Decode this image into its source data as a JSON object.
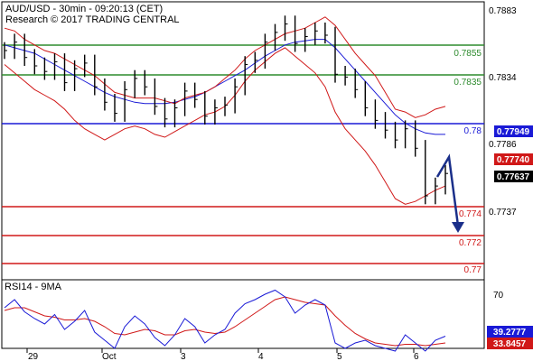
{
  "header": {
    "line1": "AUD/USD - 30min - 09:20:13 (CET)",
    "line2": "Research © 2017 TRADING CENTRAL"
  },
  "colors": {
    "green": "#2e8b2e",
    "blue": "#1a1ad6",
    "red": "#d01818",
    "black": "#000000",
    "price_tag_bg": "#000000",
    "rsi_tag_bg": "#1a1ad6"
  },
  "chart_data": [
    {
      "type": "line",
      "series": [
        {
          "values": [
            0.7852,
            0.7858,
            0.7847,
            0.7841,
            0.7837,
            0.7844,
            0.7829,
            0.7839,
            0.7843,
            0.7826,
            0.7815,
            0.7807,
            0.7824,
            0.7832,
            0.7826,
            0.7812,
            0.7803,
            0.7811,
            0.7823,
            0.7817,
            0.7805,
            0.7811,
            0.7813,
            0.7826,
            0.7842,
            0.7845,
            0.7858,
            0.7865,
            0.7871,
            0.7857,
            0.7862,
            0.7866,
            0.7863,
            0.7835,
            0.7833,
            0.7824,
            0.7811,
            0.7802,
            0.7795,
            0.7788,
            0.7796,
            0.7782,
            0.7748,
            0.7755,
            0.7764
          ]
        },
        {
          "values": [
            0.7868,
            0.7866,
            0.786,
            0.7856,
            0.7852,
            0.785,
            0.7846,
            0.7842,
            0.7838,
            0.7834,
            0.7828,
            0.7822,
            0.782,
            0.7818,
            0.7818,
            0.7818,
            0.7816,
            0.7814,
            0.7818,
            0.782,
            0.7822,
            0.7826,
            0.7832,
            0.7838,
            0.7846,
            0.7852,
            0.7856,
            0.786,
            0.7864,
            0.7866,
            0.7868,
            0.7872,
            0.7876,
            0.787,
            0.786,
            0.785,
            0.7842,
            0.7834,
            0.7822,
            0.781,
            0.7808,
            0.7804,
            0.7806,
            0.781,
            0.7812
          ]
        },
        {
          "values": [
            0.7842,
            0.7836,
            0.783,
            0.7824,
            0.782,
            0.7816,
            0.781,
            0.7802,
            0.7796,
            0.7792,
            0.7788,
            0.7792,
            0.7796,
            0.7798,
            0.7796,
            0.7792,
            0.779,
            0.7794,
            0.7798,
            0.7802,
            0.7806,
            0.7808,
            0.7812,
            0.782,
            0.783,
            0.7838,
            0.7844,
            0.785,
            0.7854,
            0.7848,
            0.7842,
            0.7836,
            0.7826,
            0.7808,
            0.7796,
            0.7788,
            0.778,
            0.777,
            0.7758,
            0.7746,
            0.7742,
            0.7744,
            0.7748,
            0.7752,
            0.7755
          ]
        },
        {
          "values": [
            0.7856,
            0.7854,
            0.7852,
            0.785,
            0.7846,
            0.7842,
            0.7838,
            0.7834,
            0.783,
            0.7826,
            0.7822,
            0.7819,
            0.7817,
            0.7815,
            0.7814,
            0.7814,
            0.7814,
            0.7815,
            0.7817,
            0.7819,
            0.7822,
            0.7826,
            0.783,
            0.7834,
            0.7838,
            0.7843,
            0.7848,
            0.7852,
            0.7856,
            0.7858,
            0.7859,
            0.786,
            0.786,
            0.7854,
            0.7846,
            0.7838,
            0.783,
            0.7822,
            0.7814,
            0.7806,
            0.78,
            0.7796,
            0.7793,
            0.7792,
            0.7792
          ]
        }
      ],
      "support_resistance": [
        "0.7855",
        "0.7835",
        "0.78",
        "0.774",
        "0.772",
        "0.77"
      ],
      "price_tags": [
        "0.77949",
        "0.77740",
        "0.77637"
      ],
      "yticks": [
        "0.7883",
        "0.7834",
        "0.7786",
        "0.7737"
      ],
      "xticks": [
        "29",
        "Oct",
        "3",
        "4",
        "5",
        "6"
      ]
    },
    {
      "type": "line",
      "title": "RSI14 - 9MA",
      "series": [
        {
          "values": [
            60,
            66,
            57,
            52,
            48,
            55,
            44,
            50,
            58,
            42,
            36,
            30,
            46,
            54,
            48,
            38,
            32,
            40,
            52,
            46,
            34,
            40,
            44,
            56,
            63,
            66,
            70,
            73,
            68,
            56,
            62,
            66,
            62,
            34,
            30,
            34,
            36,
            32,
            30,
            28,
            40,
            34,
            28,
            36,
            39
          ]
        },
        {
          "values": [
            58,
            60,
            60,
            57,
            54,
            53,
            51,
            51,
            52,
            50,
            46,
            41,
            40,
            42,
            44,
            43,
            40,
            40,
            43,
            44,
            42,
            41,
            42,
            46,
            51,
            56,
            61,
            66,
            68,
            66,
            64,
            63,
            62,
            54,
            47,
            41,
            37,
            34,
            33,
            32,
            33,
            33,
            32,
            33,
            34
          ]
        }
      ],
      "yticks": [
        "70"
      ],
      "rsi_tags": [
        "39.2777",
        "33.8457"
      ]
    }
  ]
}
